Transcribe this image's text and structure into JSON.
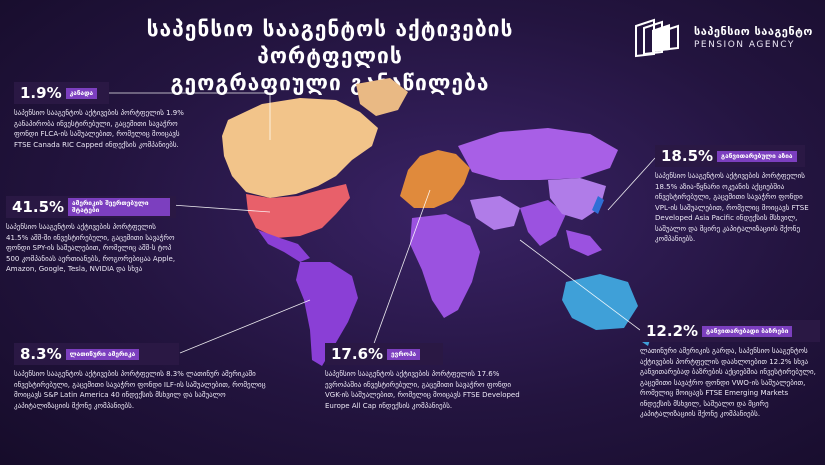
{
  "title": {
    "line1": "საპენსიო სააგენტოს აქტივების პორტფელის",
    "line2": "გეოგრაფიული განაწილება"
  },
  "logo": {
    "name_ka": "საპენსიო სააგენტო",
    "name_en": "PENSION AGENCY"
  },
  "colors": {
    "canada": "#f2c48a",
    "usa": "#e8606a",
    "latin_america": "#8a3fd6",
    "europe": "#e08a3c",
    "asia": "#9b52e0",
    "japan": "#2f6fd6",
    "emerging": "#b07ce8",
    "australia": "#3fa0d8",
    "label_bar": "#7c3fbf"
  },
  "regions": {
    "canada": {
      "pct": "1.9%",
      "label": "კანადა",
      "desc": "საპენსიო სააგენტოს აქტივების პორტფელის 1.9% განაპირობა ინვესტირებული, გაცემითი სავაჭრო ფონდი FLCA-ის საშუალებით, რომელიც მოიცავს FTSE Canada RIC Capped ინდექსის კომპანიებს."
    },
    "usa": {
      "pct": "41.5%",
      "label": "ამერიკის შეერთებული შტატები",
      "desc": "საპენსიო სააგენტოს აქტივების პორტფელის 41.5% აშშ-ში ინვესტირებული, გაცემითი სავაჭრო ფონდი SPY-ის საშუალებით, რომელიც აშშ-ს ტოპ 500 კომპანიას აერთიანებს, როგორებიცაა Apple, Amazon, Google, Tesla, NVIDIA და სხვა"
    },
    "latin_america": {
      "pct": "8.3%",
      "label": "ლათინური ამერიკა",
      "desc": "საპენსიო სააგენტოს აქტივების პორტფელის 8.3% ლათინურ ამერიკაში ინვესტირებული, გაცემითი სავაჭრო ფონდი ILF-ის საშუალებით, რომელიც მოიცავს S&P Latin America 40 ინდექსის მსხვილ და საშუალო კაპიტალიზაციის მქონე კომპანიებს."
    },
    "europe": {
      "pct": "17.6%",
      "label": "ევროპა",
      "desc": "საპენსიო სააგენტოს აქტივების პორტფელის 17.6% ევროპაშია ინვესტირებული, გაცემითი სავაჭრო ფონდი VGK-ის საშუალებით, რომელიც მოიცავს FTSE Developed Europe All Cap ინდექსის კომპანიებს."
    },
    "asia": {
      "pct": "18.5%",
      "label": "განვითარებული აზია",
      "desc": "საპენსიო სააგენტოს აქტივების პორტფელის 18.5% აზია-წყნარი ოკეანის აქციებშია ინვესტირებული, გაცემითი სავაჭრო ფონდი VPL-ის საშუალებით, რომელიც მოიცავს FTSE Developed Asia Pacific ინდექსის მსხვილ, საშუალო და მცირე კაპიტალიზაციის მქონე კომპანიებს."
    },
    "emerging": {
      "pct": "12.2%",
      "label": "განვითარებადი ბაზრები",
      "desc": "ლათინური ამერიკის გარდა, საპენსიო სააგენტოს აქტივების პორტფელის დაახლოებით 12.2% სხვა განვითარებად ბაზრების აქციებშია ინვესტირებული, გაცემითი სავაჭრო ფონდი VWO-ის საშუალებით, რომელიც მოიცავს FTSE Emerging Markets ინდექსის მსხვილ, საშუალო და მცირე კაპიტალიზაციის მქონე კომპანიებს."
    }
  }
}
